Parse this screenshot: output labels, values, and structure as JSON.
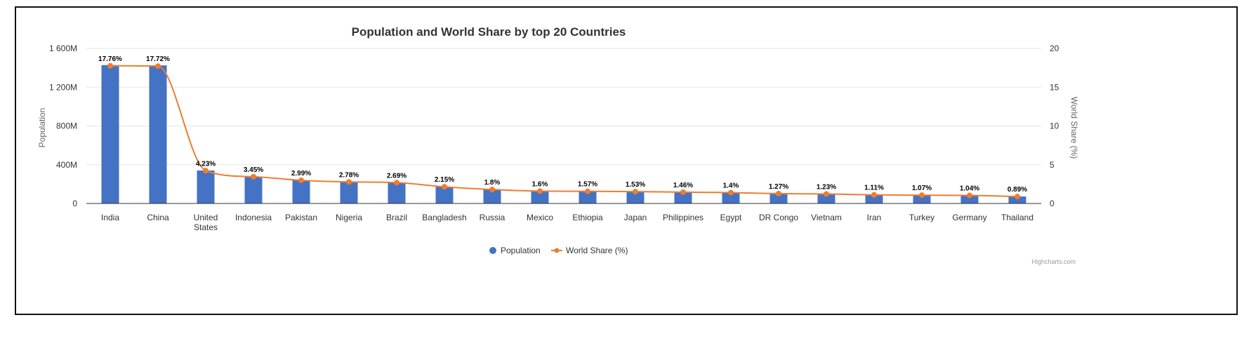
{
  "chart_data": {
    "type": "bar",
    "title": "Population and World Share by top 20 Countries",
    "categories": [
      "India",
      "China",
      "United States",
      "Indonesia",
      "Pakistan",
      "Nigeria",
      "Brazil",
      "Bangladesh",
      "Russia",
      "Mexico",
      "Ethiopia",
      "Japan",
      "Philippines",
      "Egypt",
      "DR Congo",
      "Vietnam",
      "Iran",
      "Turkey",
      "Germany",
      "Thailand"
    ],
    "series": [
      {
        "name": "Population",
        "type": "bar",
        "axis": "left",
        "color": "#4472c4",
        "values": [
          1428,
          1425,
          340,
          278,
          240,
          224,
          216,
          173,
          144,
          128,
          127,
          123,
          117,
          113,
          102,
          99,
          89,
          86,
          84,
          72
        ]
      },
      {
        "name": "World Share (%)",
        "type": "line",
        "axis": "right",
        "color": "#ed7d31",
        "values": [
          17.76,
          17.72,
          4.23,
          3.45,
          2.99,
          2.78,
          2.69,
          2.15,
          1.8,
          1.6,
          1.57,
          1.53,
          1.46,
          1.4,
          1.27,
          1.23,
          1.11,
          1.07,
          1.04,
          0.89
        ],
        "labels": [
          "17.76%",
          "17.72%",
          "4.23%",
          "3.45%",
          "2.99%",
          "2.78%",
          "2.69%",
          "2.15%",
          "1.8%",
          "1.6%",
          "1.57%",
          "1.53%",
          "1.46%",
          "1.4%",
          "1.27%",
          "1.23%",
          "1.11%",
          "1.07%",
          "1.04%",
          "0.89%"
        ]
      }
    ],
    "ylabel_left": "Population",
    "ylabel_right": "World Share (%)",
    "ylim_left": [
      0,
      1600
    ],
    "ylim_right": [
      0,
      20
    ],
    "yticks_left": [
      "0",
      "400M",
      "800M",
      "1 200M",
      "1 600M"
    ],
    "yticks_right": [
      "0",
      "5",
      "10",
      "15",
      "20"
    ],
    "grid": true,
    "legend_position": "bottom-center",
    "credits": "Highcharts.com"
  }
}
